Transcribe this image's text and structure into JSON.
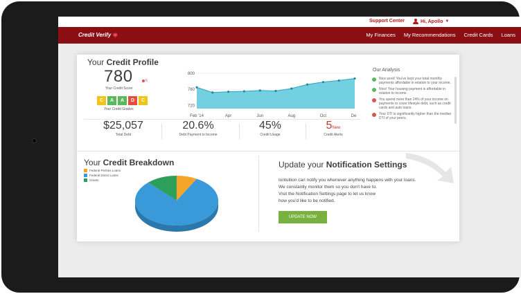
{
  "topbar": {
    "support": "Support Center",
    "user": "Hi, Apollo"
  },
  "nav": {
    "logo": "Credit Verify",
    "links": [
      "My Finances",
      "My Recommendations",
      "Credit Cards",
      "Loans"
    ]
  },
  "profile": {
    "title_light": "Your ",
    "title_bold": "Credit Profile",
    "score": "780",
    "score_change": "6",
    "score_label": "Your Credit Score",
    "grades": [
      {
        "letter": "C",
        "color": "#f0c419"
      },
      {
        "letter": "A",
        "color": "#5cb85c"
      },
      {
        "letter": "A",
        "color": "#5cb85c"
      },
      {
        "letter": "D",
        "color": "#e74c3c"
      },
      {
        "letter": "C",
        "color": "#f0c419"
      }
    ],
    "grades_label": "Your Credit Grades"
  },
  "chart_data": {
    "type": "area",
    "x": [
      "Feb '14",
      "Mar",
      "Apr",
      "May",
      "Jun",
      "Jul",
      "Aug",
      "Sep",
      "Oct",
      "Nov",
      "Dec"
    ],
    "x_tick_labels": [
      "Feb '14",
      "Apr",
      "Jun",
      "Aug",
      "Oct",
      "Dec"
    ],
    "values": [
      765,
      752,
      754,
      755,
      757,
      756,
      762,
      772,
      778,
      782,
      787
    ],
    "yticks": [
      720,
      760,
      800
    ],
    "ylim": [
      712,
      805
    ],
    "color": "#5bc8dc",
    "grid": true
  },
  "analysis": {
    "title": "Our Analysis",
    "items": [
      {
        "type": "good",
        "text": "Nice work! You've kept your total monthly payments affordable in relation to your income."
      },
      {
        "type": "good",
        "text": "Nice! Your housing payment is affordable in relation to income."
      },
      {
        "type": "bad",
        "text": "You spend more than 24% of your income on payments to cover lifestyle debt, such as credit cards and auto loans."
      },
      {
        "type": "bad",
        "text": "Your DTI is significantly higher than the median DTI of your peers."
      }
    ]
  },
  "stats": [
    {
      "value": "$25,057",
      "label": "Total Debt"
    },
    {
      "value": "20.6%",
      "label": "Debt Payment to Income"
    },
    {
      "value": "45%",
      "label": "Credit Usage"
    },
    {
      "value": "5",
      "suffix": "New",
      "label": "Credit Alerts"
    }
  ],
  "breakdown": {
    "title_light": "Your ",
    "title_bold": "Credit Breakdown",
    "legend": [
      {
        "name": "Federal Perkins Loans",
        "color": "#f4a429"
      },
      {
        "name": "Federal Direct Loans",
        "color": "#3a9ad9"
      },
      {
        "name": "Grants",
        "color": "#2e9e5b"
      }
    ],
    "pie_values": [
      8,
      80,
      12
    ]
  },
  "notification": {
    "title_light": "Update your ",
    "title_bold": "Notification Settings",
    "lines": [
      "Iontuition can notify you whenever anything happens with your loans.",
      "We constantly monitor them so you don't have to.",
      "Visit the Notification Settings page to let us know",
      "how you'd like to be notified."
    ],
    "button": "UPDATE NOW"
  }
}
